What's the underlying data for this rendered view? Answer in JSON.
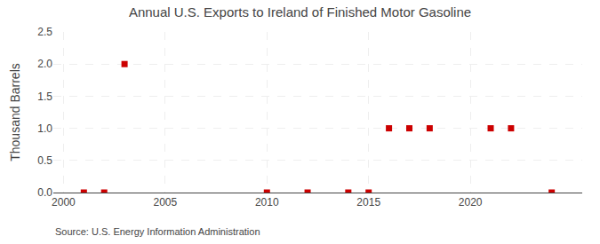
{
  "chart_data": {
    "type": "scatter",
    "title": "Annual U.S. Exports to Ireland of Finished Motor Gasoline",
    "ylabel": "Thousand Barrels",
    "annotations": [
      "Source: U.S. Energy Information Administration"
    ],
    "x": [
      2001,
      2002,
      2003,
      2010,
      2012,
      2014,
      2015,
      2016,
      2017,
      2018,
      2021,
      2022,
      2024
    ],
    "values": [
      0,
      0,
      2.0,
      0,
      0,
      0,
      0,
      1.0,
      1.0,
      1.0,
      1.0,
      1.0,
      0
    ],
    "color": "#cc0000",
    "marker": "square",
    "xlim": [
      1999.5,
      2025.5
    ],
    "xticks": [
      2000,
      2005,
      2010,
      2015,
      2020
    ],
    "ylim": [
      0,
      2.5
    ],
    "yticks": [
      {
        "value": 0.0,
        "label": "0.0"
      },
      {
        "value": 0.5,
        "label": "0.5"
      },
      {
        "value": 1.0,
        "label": "1.0"
      },
      {
        "value": 1.5,
        "label": "1.5"
      },
      {
        "value": 2.0,
        "label": "2.0"
      },
      {
        "value": 2.5,
        "label": "2.5"
      }
    ],
    "grid": true
  }
}
